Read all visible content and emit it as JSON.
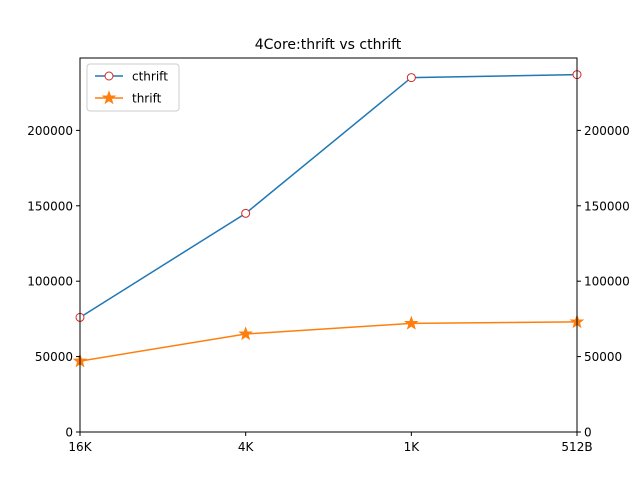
{
  "chart_data": {
    "type": "line",
    "title": "4Core:thrift vs cthrift",
    "xlabel": "",
    "ylabel": "",
    "categories": [
      "16K",
      "4K",
      "1K",
      "512B"
    ],
    "ylim": [
      0,
      248000
    ],
    "yticks": [
      0,
      50000,
      100000,
      150000,
      200000
    ],
    "ytick_labels": [
      "0",
      "50000",
      "100000",
      "150000",
      "200000"
    ],
    "right_axis": {
      "ytick_labels": [
        "0",
        "50000",
        "100000",
        "150000",
        "200000"
      ]
    },
    "grid": false,
    "legend_position": "upper-left",
    "series": [
      {
        "name": "cthrift",
        "values": [
          76000,
          145000,
          235000,
          237000
        ],
        "line_color": "#1f77b4",
        "marker": "circle",
        "marker_edge_color": "#d62728",
        "marker_face_color": "#ffffff"
      },
      {
        "name": "thrift",
        "values": [
          47000,
          65000,
          72000,
          73000
        ],
        "line_color": "#ff7f0e",
        "marker": "star",
        "marker_face_color": "#ff7f0e"
      }
    ]
  }
}
